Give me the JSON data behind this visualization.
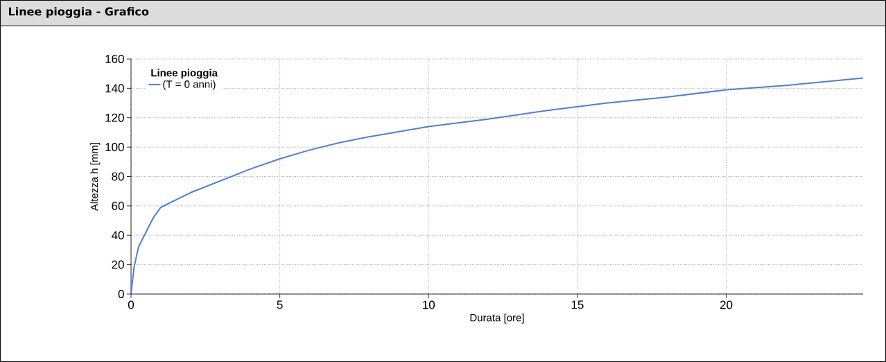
{
  "chart_data": {
    "type": "line",
    "title": "Linee pioggia - Grafico",
    "xlabel": "Durata [ore]",
    "ylabel": "Altezza h [mm]",
    "legend_title": "Linee pioggia",
    "x": [
      0,
      0.1,
      0.25,
      0.5,
      0.75,
      1,
      1.5,
      2,
      3,
      4,
      5,
      6,
      7,
      8,
      10,
      12,
      14,
      16,
      18,
      20,
      22,
      24.6
    ],
    "series": [
      {
        "name": "(T = 0 anni)",
        "color": "#4a7fe0",
        "values": [
          0,
          18,
          32,
          42,
          52,
          59,
          64,
          69,
          77,
          85,
          92,
          98,
          103,
          107,
          114,
          119,
          125,
          130,
          134,
          139,
          142,
          147
        ]
      }
    ],
    "xlim": [
      0,
      24.6
    ],
    "ylim": [
      0,
      160
    ],
    "xticks": [
      0,
      5,
      10,
      15,
      20
    ],
    "yticks": [
      0,
      20,
      40,
      60,
      80,
      100,
      120,
      140,
      160
    ],
    "grid": true,
    "legend": "top left",
    "marker": "none",
    "line_style": "solid"
  }
}
